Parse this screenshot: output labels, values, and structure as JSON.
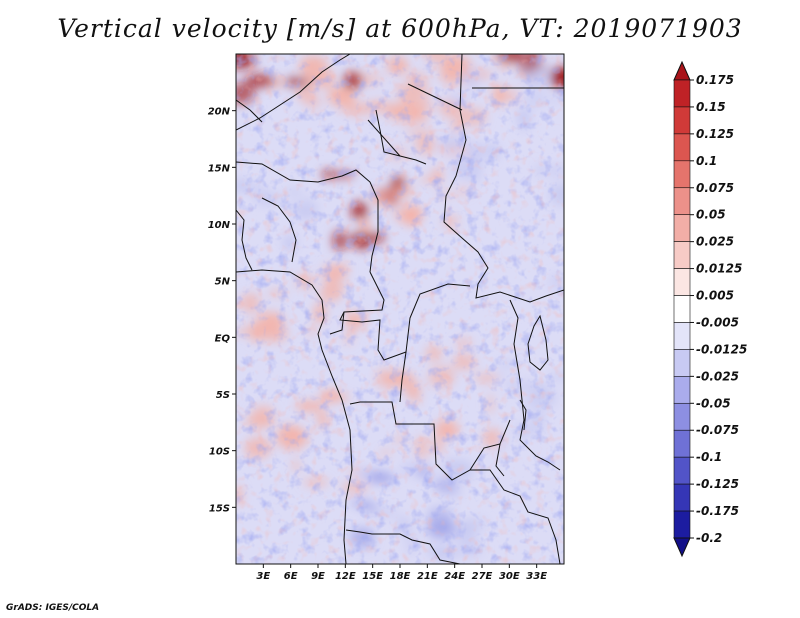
{
  "title": "Vertical velocity [m/s] at 600hPa, VT: 2019071903",
  "credit": "GrADS: IGES/COLA",
  "map": {
    "lat_range": [
      -20,
      25
    ],
    "lon_range": [
      0,
      36
    ],
    "lat_ticks": [
      {
        "value": 20,
        "label": "20N"
      },
      {
        "value": 15,
        "label": "15N"
      },
      {
        "value": 10,
        "label": "10N"
      },
      {
        "value": 5,
        "label": "5N"
      },
      {
        "value": 0,
        "label": "EQ"
      },
      {
        "value": -5,
        "label": "5S"
      },
      {
        "value": -10,
        "label": "10S"
      },
      {
        "value": -15,
        "label": "15S"
      }
    ],
    "lon_ticks": [
      {
        "value": 3,
        "label": "3E"
      },
      {
        "value": 6,
        "label": "6E"
      },
      {
        "value": 9,
        "label": "9E"
      },
      {
        "value": 12,
        "label": "12E"
      },
      {
        "value": 15,
        "label": "15E"
      },
      {
        "value": 18,
        "label": "18E"
      },
      {
        "value": 21,
        "label": "21E"
      },
      {
        "value": 24,
        "label": "24E"
      },
      {
        "value": 27,
        "label": "27E"
      },
      {
        "value": 30,
        "label": "30E"
      },
      {
        "value": 33,
        "label": "33E"
      }
    ],
    "colors": {
      "positive_strong": "#a01515",
      "positive_light": "#f3b4ab",
      "negative_light": "#c7c9f1",
      "negative_strong": "#2222aa",
      "background": "#ffffff",
      "border": "#111111"
    }
  },
  "colorbar": {
    "levels": [
      "0.175",
      "0.15",
      "0.125",
      "0.1",
      "0.075",
      "0.05",
      "0.025",
      "0.0125",
      "0.005",
      "-0.005",
      "-0.0125",
      "-0.025",
      "-0.05",
      "-0.075",
      "-0.1",
      "-0.125",
      "-0.175",
      "-0.2"
    ],
    "colors": [
      "#a9141a",
      "#bf2226",
      "#d03a38",
      "#dc5650",
      "#e5746c",
      "#ec918a",
      "#f2aea7",
      "#f7cbc6",
      "#fbe6e3",
      "#ffffff",
      "#e3e4f9",
      "#c8caf3",
      "#aaacec",
      "#8d8fe2",
      "#6f71d6",
      "#5254c8",
      "#3536b6",
      "#1c1ca0",
      "#120f88"
    ]
  }
}
